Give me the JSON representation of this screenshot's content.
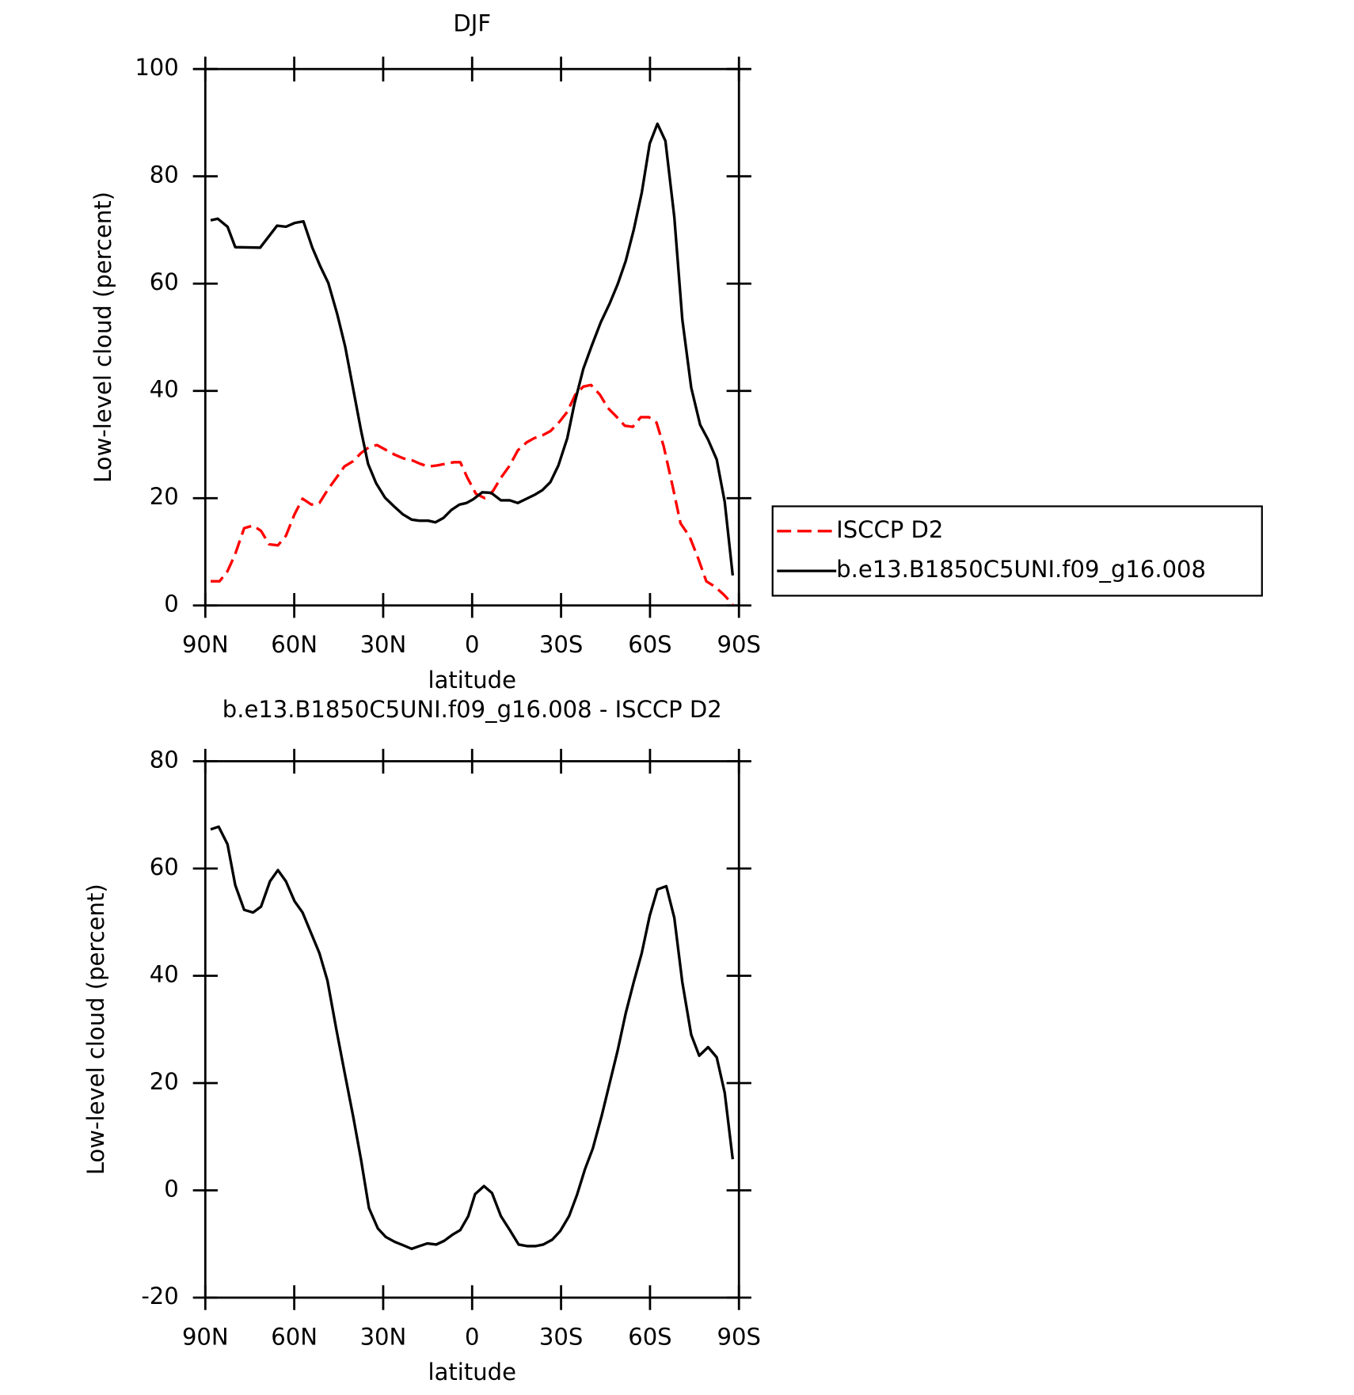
{
  "chart_data": [
    {
      "type": "line",
      "title": "DJF",
      "xlabel": "latitude",
      "ylabel": "Low-level cloud (percent)",
      "xlim": [
        90,
        -90
      ],
      "xticks": [
        {
          "value": 90,
          "label": "90N"
        },
        {
          "value": 60,
          "label": "60N"
        },
        {
          "value": 30,
          "label": "30N"
        },
        0,
        {
          "value": -30,
          "label": "30S"
        },
        {
          "value": -60,
          "label": "60S"
        },
        {
          "value": -90,
          "label": "90S"
        }
      ],
      "ylim": [
        0,
        100
      ],
      "yticks": [
        0,
        20,
        40,
        60,
        80,
        100
      ],
      "legend": "right",
      "series": [
        {
          "name": "ISCCP D2",
          "color": "#ff0000",
          "dashed": true,
          "x": [
            88.2,
            85.2,
            82.5,
            79.9,
            76.9,
            73.9,
            71.2,
            68.5,
            65.5,
            62.8,
            59.9,
            57.2,
            54.2,
            51.5,
            48.8,
            45.8,
            43.1,
            40.1,
            37.5,
            34.8,
            32.1,
            29.1,
            26.1,
            23.1,
            20.4,
            17.5,
            14.8,
            11.8,
            9.1,
            6.1,
            4.0,
            1.6,
            -1.3,
            -4.3,
            -7.0,
            -9.7,
            -12.7,
            -15.4,
            -18.4,
            -21.0,
            -23.7,
            -26.4,
            -29.4,
            -32.1,
            -34.8,
            -37.5,
            -40.1,
            -43.1,
            -45.8,
            -48.5,
            -51.5,
            -54.2,
            -56.9,
            -59.6,
            -62.2,
            -64.6,
            -67.6,
            -70.3,
            -73.3,
            -76.3,
            -79.0,
            -81.9,
            -84.9,
            -87.9
          ],
          "values": [
            4.5,
            4.5,
            6.4,
            9.6,
            14.4,
            14.9,
            13.9,
            11.4,
            11.2,
            13.0,
            17.0,
            19.9,
            18.8,
            19.1,
            21.5,
            23.8,
            25.9,
            26.9,
            28.4,
            29.5,
            29.9,
            29.0,
            28.1,
            27.4,
            27.1,
            26.4,
            25.9,
            26.1,
            26.4,
            26.7,
            26.7,
            23.8,
            20.8,
            20.0,
            21.3,
            23.8,
            26.1,
            28.9,
            30.4,
            31.2,
            31.7,
            32.5,
            34.2,
            36.1,
            39.3,
            40.8,
            41.1,
            39.3,
            36.8,
            35.3,
            33.5,
            33.3,
            35.1,
            35.1,
            34.1,
            29.7,
            22.3,
            15.3,
            12.9,
            8.7,
            4.5,
            3.5,
            2.0,
            0.2
          ]
        },
        {
          "name": "b.e13.B1850C5UNI.f09_g16.008",
          "color": "#000000",
          "dashed": false,
          "x": [
            88.2,
            85.8,
            82.5,
            79.9,
            71.5,
            65.8,
            62.8,
            59.9,
            56.9,
            53.9,
            51.2,
            48.5,
            45.5,
            42.8,
            40.1,
            37.5,
            35.1,
            32.4,
            29.4,
            26.4,
            23.4,
            20.4,
            17.8,
            14.8,
            12.4,
            9.7,
            7.0,
            4.3,
            1.9,
            -0.4,
            -3.4,
            -6.4,
            -9.7,
            -12.7,
            -15.4,
            -18.4,
            -21.0,
            -23.7,
            -26.4,
            -29.1,
            -32.1,
            -34.5,
            -37.5,
            -40.4,
            -43.4,
            -46.4,
            -49.1,
            -51.8,
            -54.5,
            -57.2,
            -59.9,
            -62.5,
            -65.2,
            -68.2,
            -70.9,
            -73.9,
            -76.9,
            -79.6,
            -82.5,
            -85.2,
            -87.9
          ],
          "values": [
            71.8,
            72.1,
            70.6,
            66.8,
            66.7,
            70.8,
            70.6,
            71.3,
            71.6,
            66.7,
            63.2,
            60.1,
            54.3,
            48.2,
            40.3,
            32.7,
            26.4,
            22.8,
            20.1,
            18.5,
            17.0,
            16.0,
            15.8,
            15.8,
            15.5,
            16.3,
            17.8,
            18.8,
            19.1,
            19.8,
            21.1,
            21.0,
            19.6,
            19.6,
            19.1,
            19.9,
            20.6,
            21.5,
            23.0,
            26.1,
            31.2,
            37.6,
            44.1,
            48.5,
            52.8,
            56.3,
            59.9,
            64.2,
            70.0,
            76.9,
            86.1,
            89.8,
            86.6,
            72.4,
            53.3,
            40.6,
            33.7,
            30.9,
            27.2,
            19.3,
            5.6
          ]
        }
      ]
    },
    {
      "type": "line",
      "title": "b.e13.B1850C5UNI.f09_g16.008 - ISCCP D2",
      "xlabel": "latitude",
      "ylabel": "Low-level cloud (percent)",
      "xlim": [
        90,
        -90
      ],
      "xticks": [
        {
          "value": 90,
          "label": "90N"
        },
        {
          "value": 60,
          "label": "60N"
        },
        {
          "value": 30,
          "label": "30N"
        },
        0,
        {
          "value": -30,
          "label": "30S"
        },
        {
          "value": -60,
          "label": "60S"
        },
        {
          "value": -90,
          "label": "90S"
        }
      ],
      "ylim": [
        -20,
        80
      ],
      "yticks": [
        -20,
        0,
        20,
        40,
        60,
        80
      ],
      "series": [
        {
          "color": "#000000",
          "dashed": false,
          "x": [
            88.2,
            85.5,
            82.5,
            79.9,
            76.9,
            73.9,
            71.2,
            68.2,
            65.5,
            62.8,
            59.9,
            57.2,
            54.2,
            51.5,
            48.8,
            45.8,
            43.1,
            40.1,
            37.5,
            34.8,
            31.8,
            29.1,
            26.1,
            23.4,
            20.4,
            17.8,
            15.1,
            12.1,
            9.4,
            6.7,
            4.0,
            1.3,
            -1.0,
            -4.0,
            -6.7,
            -9.7,
            -12.7,
            -15.7,
            -18.7,
            -21.3,
            -24.0,
            -27.0,
            -29.7,
            -32.7,
            -35.4,
            -38.1,
            -40.7,
            -43.7,
            -46.4,
            -49.1,
            -51.8,
            -54.5,
            -57.2,
            -59.9,
            -62.5,
            -65.5,
            -68.2,
            -70.9,
            -73.9,
            -76.6,
            -79.6,
            -82.5,
            -85.2,
            -87.9
          ],
          "values": [
            67.3,
            67.8,
            64.5,
            56.9,
            52.3,
            51.8,
            52.9,
            57.6,
            59.7,
            57.6,
            53.9,
            51.8,
            47.8,
            44.2,
            39.1,
            30.0,
            22.2,
            13.7,
            5.8,
            -3.3,
            -7.1,
            -8.7,
            -9.6,
            -10.2,
            -10.9,
            -10.4,
            -9.9,
            -10.1,
            -9.4,
            -8.3,
            -7.4,
            -4.8,
            -0.7,
            0.8,
            -0.5,
            -4.8,
            -7.4,
            -10.1,
            -10.4,
            -10.4,
            -10.1,
            -9.2,
            -7.6,
            -4.8,
            -0.8,
            4.0,
            7.8,
            13.9,
            20.0,
            26.1,
            33.0,
            38.8,
            44.2,
            51.2,
            56.1,
            56.7,
            50.8,
            38.8,
            29.0,
            25.1,
            26.7,
            24.8,
            18.2,
            5.8
          ]
        }
      ]
    }
  ]
}
